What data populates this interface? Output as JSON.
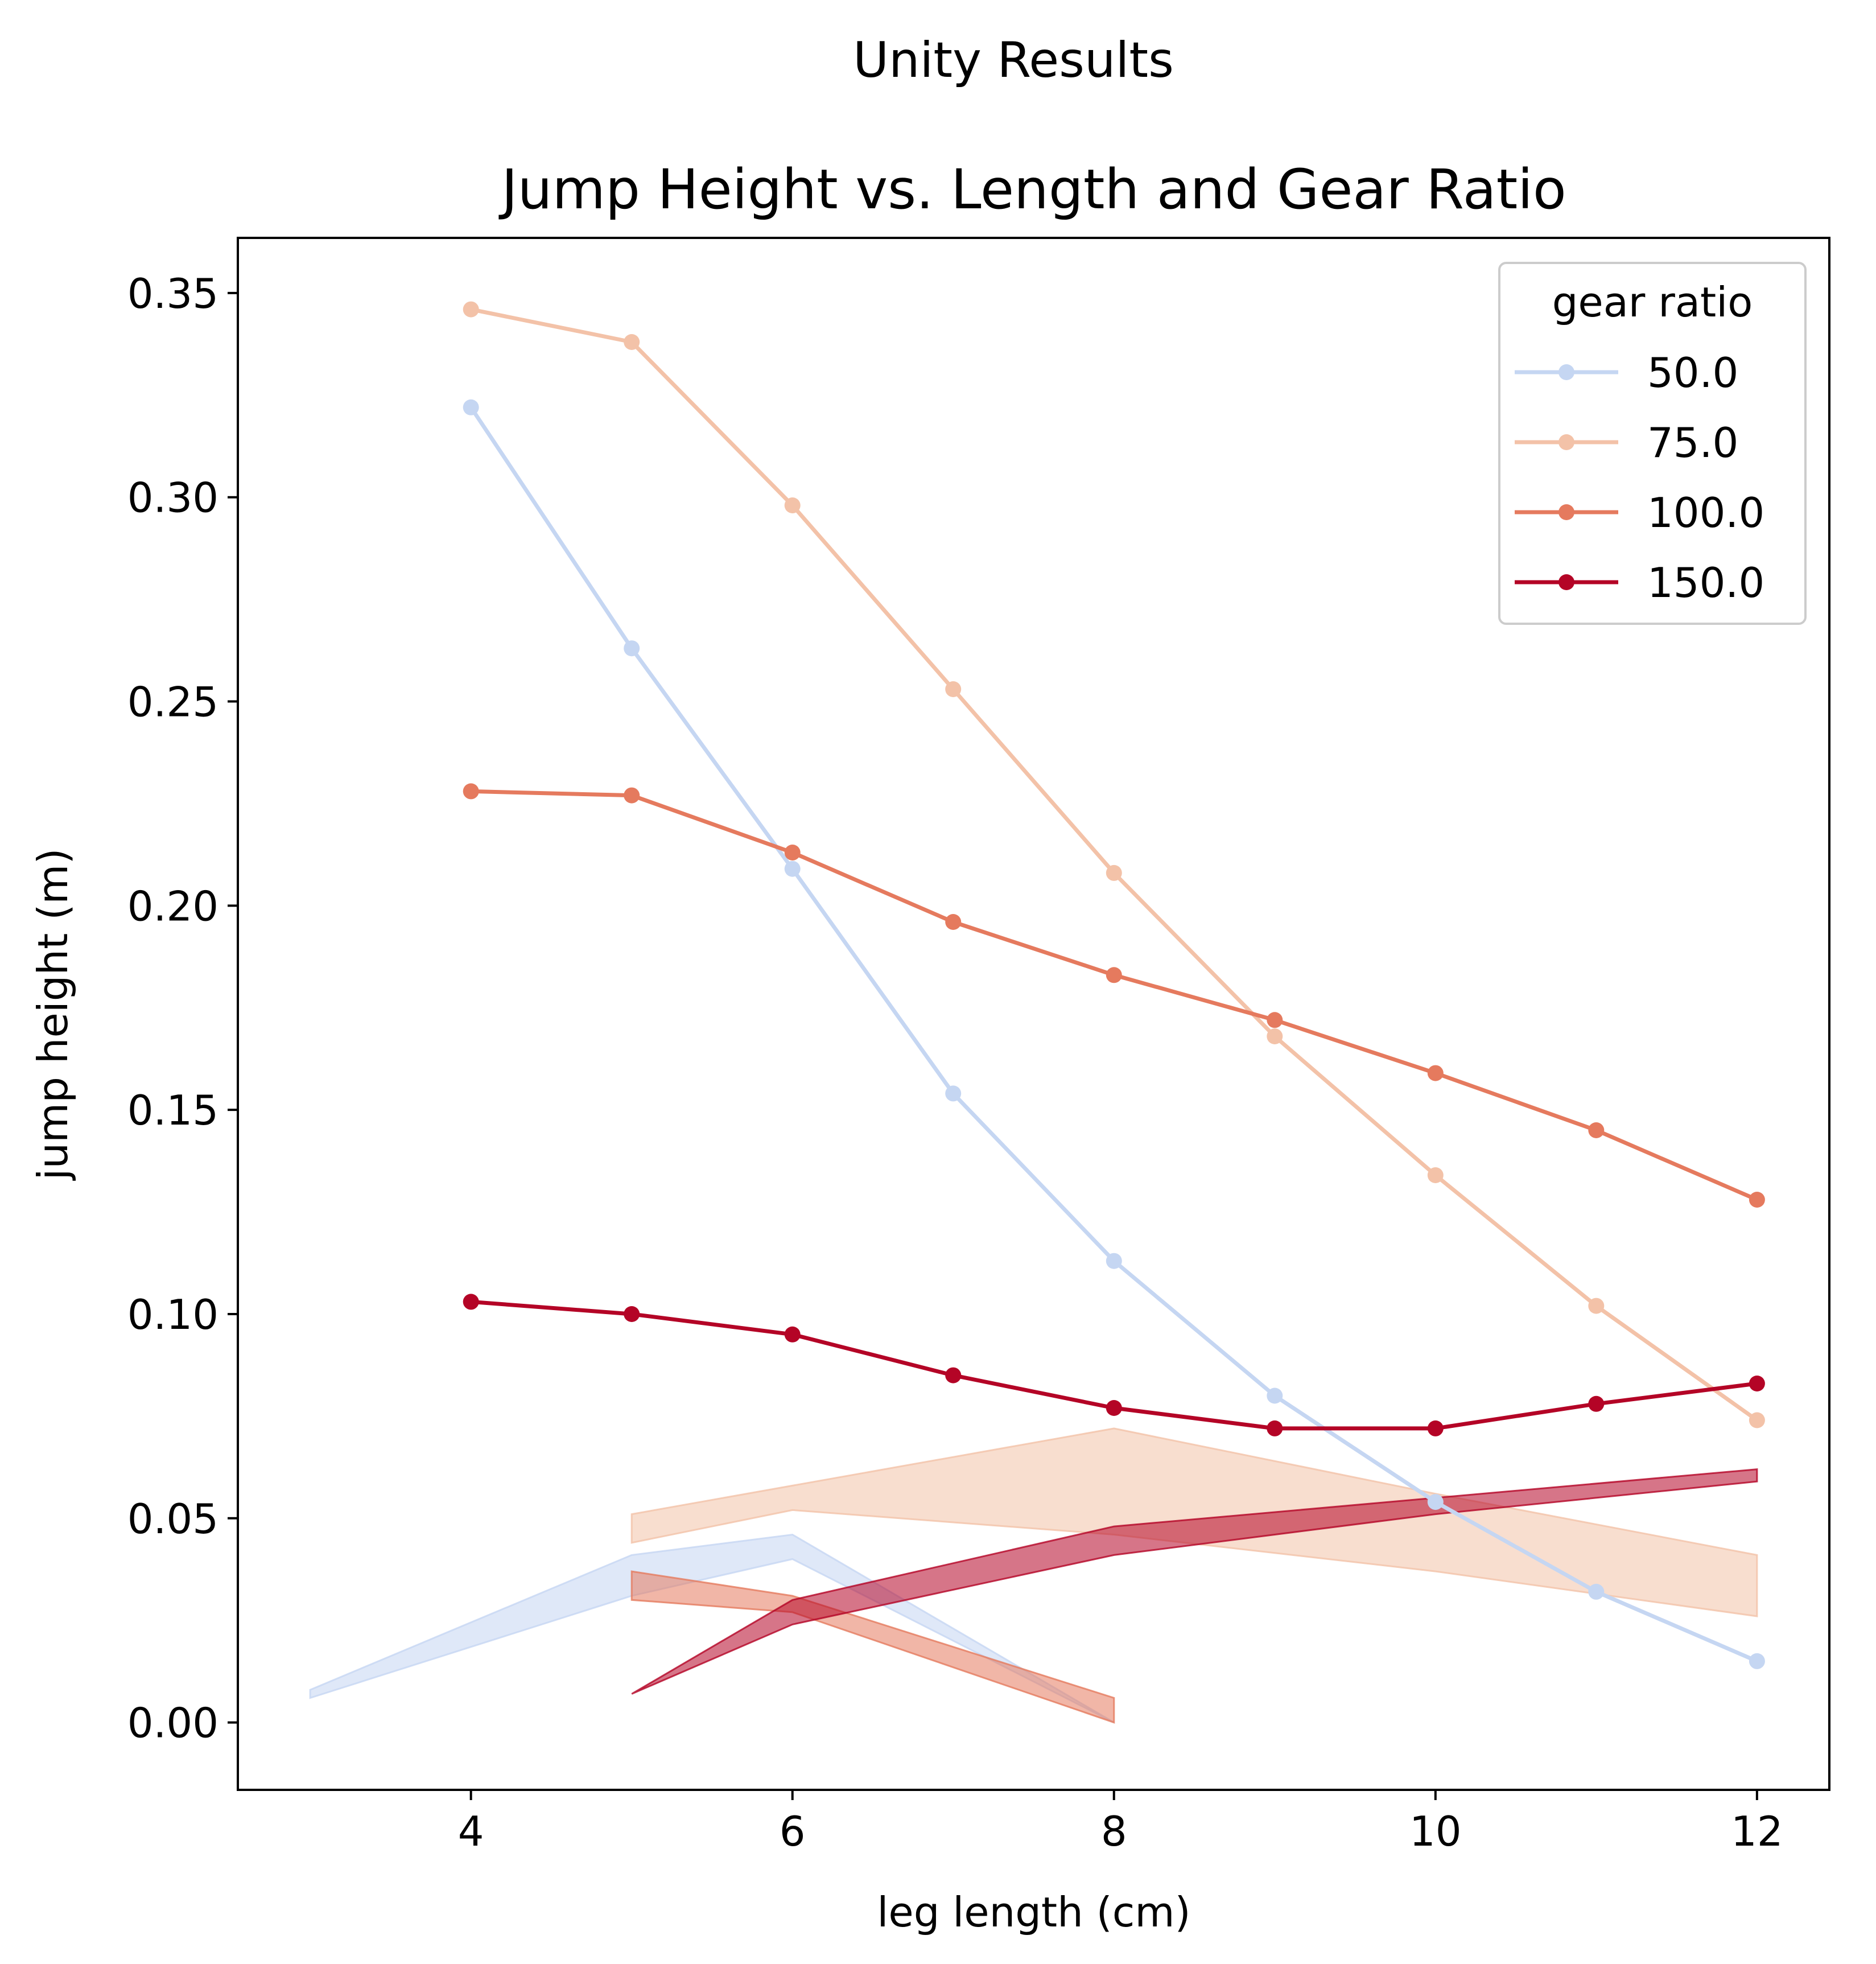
{
  "chart_data": {
    "type": "line",
    "suptitle": "Unity Results",
    "title": "Jump Height vs. Length and Gear Ratio",
    "xlabel": "leg length (cm)",
    "ylabel": "jump height (m)",
    "xlim": [
      2.55,
      12.45
    ],
    "ylim": [
      -0.0165,
      0.3635
    ],
    "xticks": [
      4,
      6,
      8,
      10,
      12
    ],
    "xtick_labels": [
      "4",
      "6",
      "8",
      "10",
      "12"
    ],
    "yticks": [
      0.0,
      0.05,
      0.1,
      0.15,
      0.2,
      0.25,
      0.3,
      0.35
    ],
    "ytick_labels": [
      "0.00",
      "0.05",
      "0.10",
      "0.15",
      "0.20",
      "0.25",
      "0.30",
      "0.35"
    ],
    "grid": false,
    "legend": {
      "title": "gear ratio",
      "placement": "top-right"
    },
    "series": [
      {
        "name": "50.0",
        "color": "#c5d6f2",
        "x": [
          4,
          5,
          6,
          7,
          8,
          9,
          10,
          11,
          12
        ],
        "y": [
          0.322,
          0.263,
          0.209,
          0.154,
          0.113,
          0.08,
          0.054,
          0.032,
          0.015
        ],
        "band": {
          "x": [
            3,
            5,
            6,
            8
          ],
          "lower": [
            0.006,
            0.031,
            0.04,
            0.0
          ],
          "upper": [
            0.008,
            0.041,
            0.046,
            0.0
          ]
        }
      },
      {
        "name": "75.0",
        "color": "#f3c2a8",
        "x": [
          4,
          5,
          6,
          7,
          8,
          9,
          10,
          11,
          12
        ],
        "y": [
          0.346,
          0.338,
          0.298,
          0.253,
          0.208,
          0.168,
          0.134,
          0.102,
          0.074
        ],
        "band": {
          "x": [
            5,
            6,
            8,
            10,
            12
          ],
          "lower": [
            0.044,
            0.052,
            0.046,
            0.037,
            0.026
          ],
          "upper": [
            0.051,
            0.058,
            0.072,
            0.056,
            0.041
          ]
        }
      },
      {
        "name": "100.0",
        "color": "#e57a5e",
        "x": [
          4,
          5,
          6,
          7,
          8,
          9,
          10,
          11,
          12
        ],
        "y": [
          0.228,
          0.227,
          0.213,
          0.196,
          0.183,
          0.172,
          0.159,
          0.145,
          0.128
        ],
        "band": {
          "x": [
            5,
            6,
            8
          ],
          "lower": [
            0.03,
            0.027,
            0.0
          ],
          "upper": [
            0.037,
            0.031,
            0.006
          ]
        }
      },
      {
        "name": "150.0",
        "color": "#b40426",
        "x": [
          4,
          5,
          6,
          7,
          8,
          9,
          10,
          11,
          12
        ],
        "y": [
          0.103,
          0.1,
          0.095,
          0.085,
          0.077,
          0.072,
          0.072,
          0.078,
          0.083
        ],
        "band": {
          "x": [
            5,
            6,
            8,
            10,
            12
          ],
          "lower": [
            0.007,
            0.024,
            0.041,
            0.051,
            0.059
          ],
          "upper": [
            0.007,
            0.03,
            0.048,
            0.055,
            0.062
          ]
        }
      }
    ]
  }
}
